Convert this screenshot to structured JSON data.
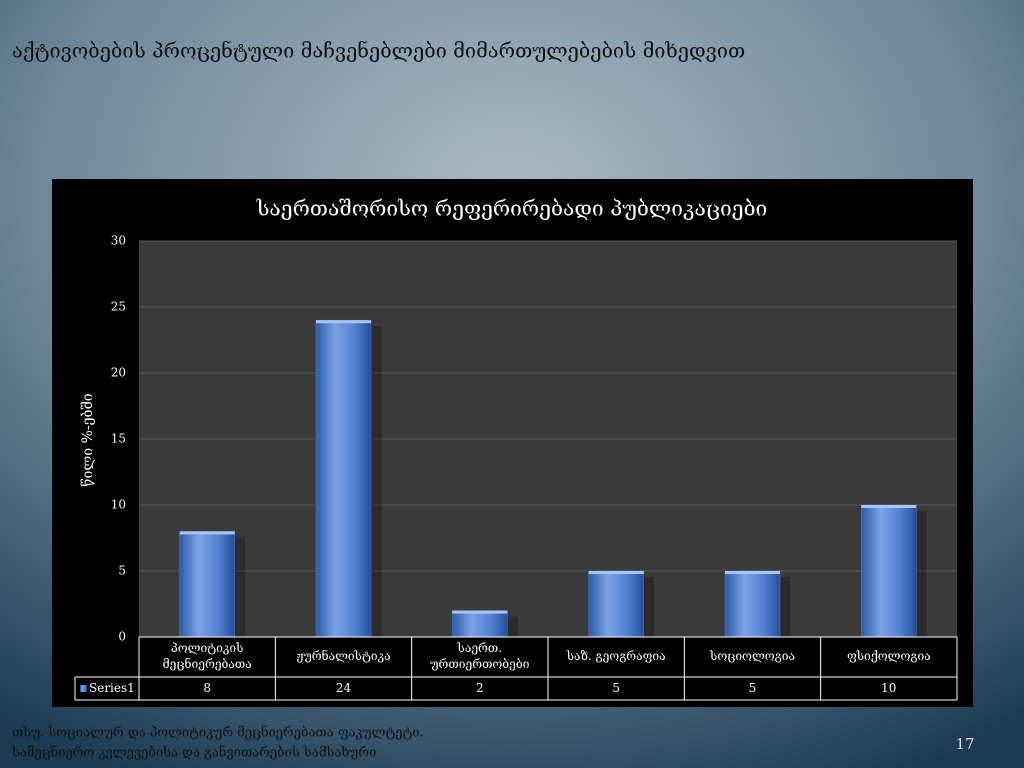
{
  "slide_title": "აქტივობების პროცენტული მაჩვენებლები მიმართულებების მიხედვით",
  "chart_data": {
    "type": "bar",
    "title": "საერთაშორისო რეფერირებადი პუბლიკაციები",
    "y_label": "წილი %-ებში",
    "categories": [
      "პოლიტიკის მეცნიერებათა",
      "ჟურნალისტიკა",
      "საერთ. ურთიერთობები",
      "საზ. გეოგრაფია",
      "სოციოლოგია",
      "ფსიქოლოგია"
    ],
    "series": [
      {
        "name": "Series1",
        "color": "#4f7fd0",
        "values": [
          8,
          24,
          2,
          5,
          5,
          10
        ]
      }
    ],
    "ylim": [
      0,
      30
    ],
    "yticks": [
      0,
      5,
      10,
      15,
      20,
      25,
      30
    ],
    "grid": true,
    "data_table": true
  },
  "footer": [
    "თსუ. სოციალურ და პოლიტიკურ მეცნიერებათა ფაკულტეტი.",
    "სამეცნიერო კვლევებისა და განვითარების სამსახური"
  ],
  "page_number": "17"
}
